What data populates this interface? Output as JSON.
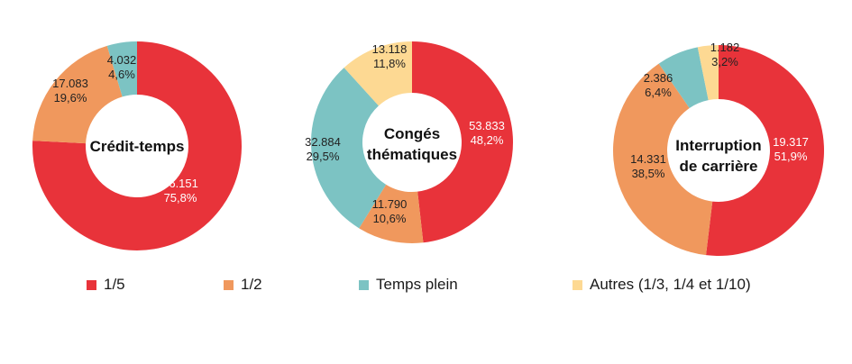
{
  "colors": {
    "1/5": "#e8333a",
    "1/2": "#f0985d",
    "Temps plein": "#7cc3c3",
    "Autres": "#fdd993"
  },
  "legend": [
    {
      "key": "1/5",
      "label": "1/5"
    },
    {
      "key": "1/2",
      "label": "1/2"
    },
    {
      "key": "Temps plein",
      "label": "Temps plein"
    },
    {
      "key": "Autres",
      "label": "Autres (1/3, 1/4 et 1/10)"
    }
  ],
  "chart_data": [
    {
      "type": "pie",
      "title": "Crédit-temps",
      "slices": [
        {
          "key": "1/5",
          "value": 66151,
          "value_label": "66.151",
          "pct_label": "75,8%"
        },
        {
          "key": "1/2",
          "value": 17083,
          "value_label": "17.083",
          "pct_label": "19,6%"
        },
        {
          "key": "Temps plein",
          "value": 4032,
          "value_label": "4.032",
          "pct_label": "4,6%"
        }
      ]
    },
    {
      "type": "pie",
      "title": "Congés thématiques",
      "slices": [
        {
          "key": "1/5",
          "value": 53833,
          "value_label": "53.833",
          "pct_label": "48,2%"
        },
        {
          "key": "1/2",
          "value": 11790,
          "value_label": "11.790",
          "pct_label": "10,6%"
        },
        {
          "key": "Temps plein",
          "value": 32884,
          "value_label": "32.884",
          "pct_label": "29,5%"
        },
        {
          "key": "Autres",
          "value": 13118,
          "value_label": "13.118",
          "pct_label": "11,8%"
        }
      ]
    },
    {
      "type": "pie",
      "title": "Interruption de carrière",
      "slices": [
        {
          "key": "1/5",
          "value": 19317,
          "value_label": "19.317",
          "pct_label": "51,9%"
        },
        {
          "key": "1/2",
          "value": 14331,
          "value_label": "14.331",
          "pct_label": "38,5%"
        },
        {
          "key": "Temps plein",
          "value": 2386,
          "value_label": "2.386",
          "pct_label": "6,4%"
        },
        {
          "key": "Autres",
          "value": 1182,
          "value_label": "1.182",
          "pct_label": "3,2%"
        }
      ]
    }
  ]
}
